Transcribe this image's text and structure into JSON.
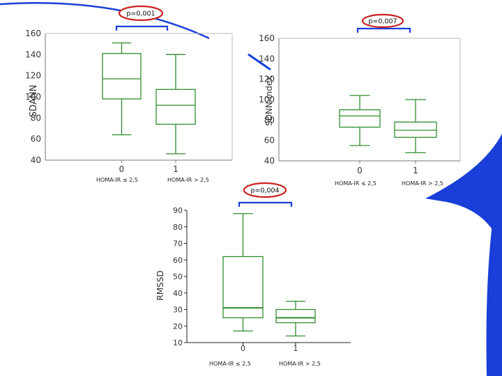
{
  "slide": {
    "accent_color": "#1a3fd8",
    "box_color": "#2e8b2e",
    "bracket_color": "#1a3fd8",
    "highlight_color": "#cc2020"
  },
  "chart_data": [
    {
      "type": "box",
      "ylabel": "SDANN",
      "categories": [
        "0",
        "1"
      ],
      "group_labels": [
        "HOMA-IR ≤ 2,5",
        "HOMA-IR  > 2,5"
      ],
      "ylim": [
        40,
        160
      ],
      "yticks": [
        "40",
        "60",
        "80",
        "100",
        "120",
        "140",
        "160"
      ],
      "p_value": "p=0,001",
      "boxes": [
        {
          "whisker_low": 64,
          "q1": 98,
          "median": 117,
          "q3": 141,
          "whisker_high": 151
        },
        {
          "whisker_low": 46,
          "q1": 74,
          "median": 92,
          "q3": 107,
          "whisker_high": 140
        }
      ]
    },
    {
      "type": "box",
      "ylabel": "SDNN-index",
      "categories": [
        "0",
        "1"
      ],
      "group_labels": [
        "HOMA-IR ≤ 2,5",
        "HOMA-IR  > 2,5"
      ],
      "ylim": [
        40,
        160
      ],
      "yticks": [
        "40",
        "60",
        "80",
        "100",
        "120",
        "140",
        "160"
      ],
      "p_value": "p=0,007",
      "boxes": [
        {
          "whisker_low": 55,
          "q1": 73,
          "median": 84,
          "q3": 90,
          "whisker_high": 104
        },
        {
          "whisker_low": 48,
          "q1": 63,
          "median": 70,
          "q3": 78,
          "whisker_high": 100
        }
      ]
    },
    {
      "type": "box",
      "ylabel": "RMSSD",
      "categories": [
        "0",
        "1"
      ],
      "group_labels": [
        "HOMA-IR ≤ 2,5",
        "HOMA-IR  > 2,5"
      ],
      "ylim": [
        10,
        90
      ],
      "yticks": [
        "10",
        "20",
        "30",
        "40",
        "50",
        "60",
        "70",
        "80",
        "90"
      ],
      "p_value": "p=0,004",
      "boxes": [
        {
          "whisker_low": 17,
          "q1": 25,
          "median": 31,
          "q3": 62,
          "whisker_high": 88
        },
        {
          "whisker_low": 14,
          "q1": 22,
          "median": 25,
          "q3": 30,
          "whisker_high": 35
        }
      ]
    }
  ]
}
